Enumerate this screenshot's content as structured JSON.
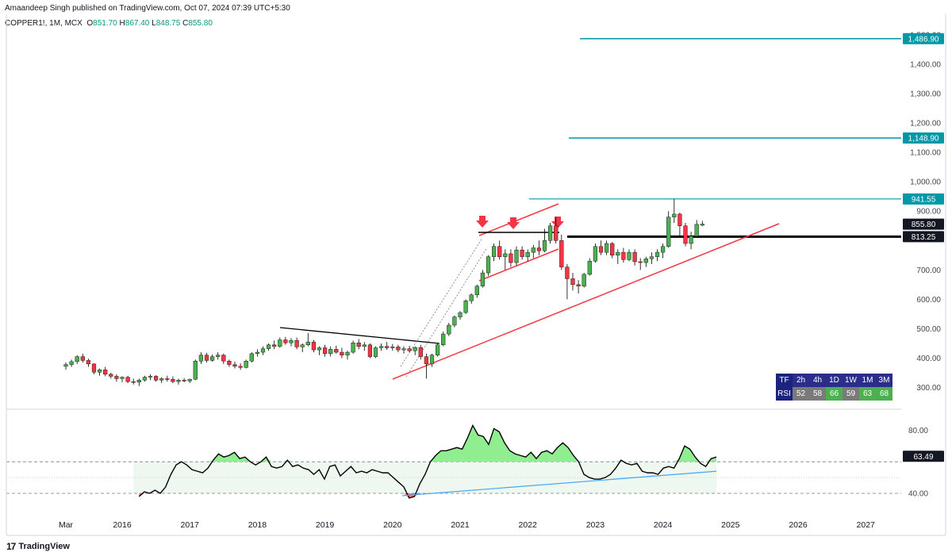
{
  "header": {
    "publisher": "Amaandeep Singh published on TradingView.com, Oct 07, 2024 07:39 UTC+5:30",
    "symbol": "COPPER1!, 1M, MCX",
    "open_label": "O",
    "open": "851.70",
    "high_label": "H",
    "high": "867.40",
    "low_label": "L",
    "low": "848.75",
    "close_label": "C",
    "close": "855.80"
  },
  "footer": {
    "brand": "TradingView"
  },
  "colors": {
    "up": "#4caf50",
    "down": "#f23645",
    "level": "#0097a7",
    "support": "#000000",
    "trendline": "#f23645",
    "rsi_fill": "#90ee90",
    "rsi_line": "#000000",
    "rsi_trend": "#42a5f5",
    "ob_band": "#e8f5e9",
    "price_badge": "#131722"
  },
  "chart_data": [
    {
      "type": "candlestick",
      "title": "COPPER1!, 1M, MCX",
      "ylim": [
        240,
        1530
      ],
      "y_ticks": [
        "1,500.00",
        "1,400.00",
        "1,300.00",
        "1,200.00",
        "1,100.00",
        "1,000.00",
        "900.00",
        "700.00",
        "600.00",
        "500.00",
        "400.00",
        "300.00"
      ],
      "x_ticks": [
        "Mar",
        "2016",
        "2017",
        "2018",
        "2019",
        "2020",
        "2021",
        "2022",
        "2023",
        "2024",
        "2025",
        "2026",
        "2027"
      ],
      "start": "2015-03",
      "candles": [
        [
          372,
          385,
          360,
          378
        ],
        [
          378,
          395,
          370,
          388
        ],
        [
          388,
          410,
          380,
          405
        ],
        [
          405,
          415,
          385,
          392
        ],
        [
          392,
          398,
          370,
          380
        ],
        [
          380,
          382,
          345,
          352
        ],
        [
          352,
          365,
          340,
          360
        ],
        [
          360,
          370,
          338,
          345
        ],
        [
          345,
          350,
          330,
          338
        ],
        [
          338,
          345,
          320,
          330
        ],
        [
          330,
          338,
          318,
          335
        ],
        [
          335,
          340,
          315,
          320
        ],
        [
          320,
          330,
          310,
          318
        ],
        [
          318,
          330,
          305,
          325
        ],
        [
          325,
          340,
          320,
          335
        ],
        [
          335,
          345,
          325,
          338
        ],
        [
          338,
          342,
          320,
          325
        ],
        [
          325,
          335,
          315,
          330
        ],
        [
          330,
          340,
          320,
          328
        ],
        [
          328,
          338,
          315,
          320
        ],
        [
          320,
          330,
          310,
          325
        ],
        [
          325,
          332,
          318,
          322
        ],
        [
          322,
          330,
          315,
          328
        ],
        [
          328,
          395,
          325,
          390
        ],
        [
          390,
          420,
          380,
          410
        ],
        [
          410,
          418,
          385,
          392
        ],
        [
          392,
          412,
          388,
          405
        ],
        [
          405,
          420,
          395,
          410
        ],
        [
          410,
          415,
          380,
          390
        ],
        [
          390,
          395,
          370,
          378
        ],
        [
          378,
          388,
          365,
          372
        ],
        [
          372,
          382,
          360,
          368
        ],
        [
          368,
          395,
          365,
          390
        ],
        [
          390,
          420,
          385,
          415
        ],
        [
          415,
          430,
          405,
          420
        ],
        [
          420,
          440,
          410,
          432
        ],
        [
          432,
          450,
          425,
          445
        ],
        [
          445,
          460,
          430,
          440
        ],
        [
          440,
          470,
          435,
          462
        ],
        [
          462,
          472,
          445,
          452
        ],
        [
          452,
          468,
          440,
          460
        ],
        [
          460,
          470,
          430,
          438
        ],
        [
          438,
          450,
          420,
          445
        ],
        [
          445,
          485,
          440,
          455
        ],
        [
          455,
          462,
          420,
          428
        ],
        [
          428,
          440,
          410,
          435
        ],
        [
          435,
          445,
          405,
          415
        ],
        [
          415,
          440,
          405,
          430
        ],
        [
          430,
          442,
          415,
          420
        ],
        [
          420,
          435,
          400,
          410
        ],
        [
          410,
          425,
          395,
          420
        ],
        [
          420,
          460,
          415,
          452
        ],
        [
          452,
          465,
          430,
          440
        ],
        [
          440,
          455,
          425,
          445
        ],
        [
          445,
          450,
          400,
          405
        ],
        [
          405,
          440,
          400,
          435
        ],
        [
          435,
          450,
          425,
          440
        ],
        [
          440,
          455,
          428,
          435
        ],
        [
          435,
          448,
          425,
          438
        ],
        [
          438,
          445,
          420,
          428
        ],
        [
          428,
          440,
          415,
          432
        ],
        [
          432,
          442,
          420,
          425
        ],
        [
          425,
          440,
          410,
          436
        ],
        [
          436,
          445,
          395,
          405
        ],
        [
          405,
          415,
          330,
          380
        ],
        [
          380,
          415,
          370,
          410
        ],
        [
          410,
          450,
          405,
          445
        ],
        [
          445,
          490,
          440,
          482
        ],
        [
          482,
          520,
          475,
          512
        ],
        [
          512,
          545,
          505,
          540
        ],
        [
          540,
          560,
          530,
          555
        ],
        [
          555,
          600,
          550,
          595
        ],
        [
          595,
          620,
          585,
          615
        ],
        [
          615,
          650,
          605,
          645
        ],
        [
          645,
          700,
          640,
          690
        ],
        [
          690,
          750,
          680,
          745
        ],
        [
          745,
          790,
          730,
          780
        ],
        [
          780,
          800,
          735,
          745
        ],
        [
          745,
          770,
          700,
          755
        ],
        [
          755,
          770,
          710,
          725
        ],
        [
          725,
          780,
          715,
          768
        ],
        [
          768,
          780,
          735,
          745
        ],
        [
          745,
          770,
          730,
          760
        ],
        [
          760,
          785,
          740,
          775
        ],
        [
          775,
          800,
          750,
          765
        ],
        [
          765,
          840,
          760,
          800
        ],
        [
          800,
          860,
          790,
          850
        ],
        [
          850,
          880,
          790,
          800
        ],
        [
          800,
          820,
          700,
          710
        ],
        [
          710,
          720,
          600,
          670
        ],
        [
          670,
          690,
          630,
          650
        ],
        [
          650,
          665,
          620,
          645
        ],
        [
          645,
          690,
          640,
          685
        ],
        [
          685,
          740,
          680,
          730
        ],
        [
          730,
          790,
          725,
          780
        ],
        [
          780,
          800,
          750,
          760
        ],
        [
          760,
          800,
          750,
          790
        ],
        [
          790,
          795,
          740,
          750
        ],
        [
          750,
          770,
          720,
          760
        ],
        [
          760,
          775,
          725,
          735
        ],
        [
          735,
          770,
          730,
          760
        ],
        [
          760,
          770,
          715,
          728
        ],
        [
          728,
          740,
          700,
          725
        ],
        [
          725,
          745,
          710,
          738
        ],
        [
          738,
          760,
          720,
          745
        ],
        [
          745,
          770,
          730,
          760
        ],
        [
          760,
          790,
          740,
          780
        ],
        [
          780,
          900,
          775,
          880
        ],
        [
          880,
          942,
          860,
          890
        ],
        [
          890,
          895,
          810,
          850
        ],
        [
          850,
          860,
          780,
          790
        ],
        [
          790,
          830,
          770,
          815
        ],
        [
          815,
          870,
          810,
          855
        ],
        [
          852,
          867,
          849,
          856
        ]
      ]
    },
    {
      "type": "line",
      "title": "RSI",
      "ylim": [
        33,
        88
      ],
      "y_ticks": [
        "80.00",
        "40.00"
      ],
      "overbought": 60,
      "oversold": 40,
      "midline": 50,
      "current_value": "63.49",
      "values": [
        38,
        41,
        40,
        42,
        40,
        44,
        52,
        58,
        60,
        58,
        55,
        54,
        53,
        56,
        61,
        65,
        63,
        64,
        66,
        62,
        63,
        60,
        58,
        60,
        63,
        57,
        56,
        57,
        61,
        57,
        58,
        56,
        55,
        52,
        55,
        49,
        57,
        58,
        51,
        54,
        57,
        53,
        54,
        53,
        55,
        54,
        53,
        53,
        50,
        47,
        44,
        37,
        38,
        46,
        52,
        60,
        64,
        67,
        67,
        68,
        69,
        68,
        75,
        83,
        77,
        76,
        71,
        81,
        79,
        72,
        67,
        65,
        64,
        63,
        66,
        62,
        66,
        67,
        65,
        69,
        72,
        69,
        64,
        60,
        52,
        50,
        49,
        49,
        50,
        52,
        56,
        61,
        59,
        58,
        59,
        54,
        53,
        53,
        52,
        56,
        57,
        56,
        62,
        70,
        68,
        63,
        59,
        57,
        62,
        63
      ]
    }
  ],
  "levels": {
    "level_1486": "1,486.90",
    "level_1148": "1,148.90",
    "level_941": "941.55",
    "current_price": "855.80",
    "support": "813.25"
  },
  "rsi_table": {
    "header": [
      "TF",
      "2h",
      "4h",
      "1D",
      "1W",
      "1M",
      "3M"
    ],
    "row_label": "RSI",
    "values": [
      "52",
      "58",
      "66",
      "59",
      "63",
      "68"
    ],
    "styles": [
      "grey",
      "grey",
      "green",
      "grey",
      "green",
      "green"
    ]
  }
}
